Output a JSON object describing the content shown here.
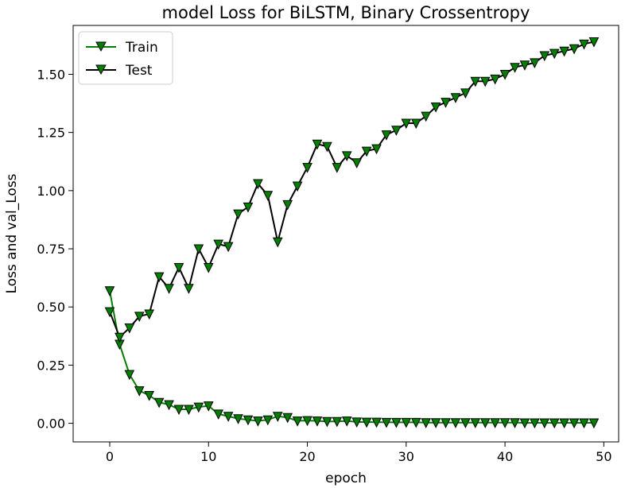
{
  "chart_data": {
    "type": "line",
    "title": "model Loss for BiLSTM, Binary Crossentropy",
    "xlabel": "epoch",
    "ylabel": "Loss and val_Loss",
    "xlim": [
      -3.7,
      51.5
    ],
    "ylim": [
      -0.08,
      1.71
    ],
    "xticks": [
      0,
      10,
      20,
      30,
      40,
      50
    ],
    "xtick_labels": [
      "0",
      "10",
      "20",
      "30",
      "40",
      "50"
    ],
    "yticks": [
      0.0,
      0.25,
      0.5,
      0.75,
      1.0,
      1.25,
      1.5
    ],
    "ytick_labels": [
      "0.00",
      "0.25",
      "0.50",
      "0.75",
      "1.00",
      "1.25",
      "1.50"
    ],
    "grid": false,
    "legend_position": "top-left",
    "series": [
      {
        "name": "Train",
        "color": "#007f00",
        "marker": "triangle-down",
        "x": [
          0,
          1,
          2,
          3,
          4,
          5,
          6,
          7,
          8,
          9,
          10,
          11,
          12,
          13,
          14,
          15,
          16,
          17,
          18,
          19,
          20,
          21,
          22,
          23,
          24,
          25,
          26,
          27,
          28,
          29,
          30,
          31,
          32,
          33,
          34,
          35,
          36,
          37,
          38,
          39,
          40,
          41,
          42,
          43,
          44,
          45,
          46,
          47,
          48,
          49
        ],
        "values": [
          0.57,
          0.34,
          0.21,
          0.14,
          0.12,
          0.09,
          0.08,
          0.06,
          0.06,
          0.07,
          0.075,
          0.04,
          0.03,
          0.02,
          0.015,
          0.01,
          0.015,
          0.03,
          0.025,
          0.01,
          0.012,
          0.01,
          0.008,
          0.008,
          0.01,
          0.006,
          0.005,
          0.005,
          0.004,
          0.004,
          0.004,
          0.004,
          0.003,
          0.003,
          0.003,
          0.003,
          0.003,
          0.003,
          0.003,
          0.003,
          0.003,
          0.003,
          0.002,
          0.002,
          0.002,
          0.002,
          0.002,
          0.002,
          0.002,
          0.002
        ]
      },
      {
        "name": "Test",
        "color": "#000000",
        "marker": "triangle-down",
        "x": [
          0,
          1,
          2,
          3,
          4,
          5,
          6,
          7,
          8,
          9,
          10,
          11,
          12,
          13,
          14,
          15,
          16,
          17,
          18,
          19,
          20,
          21,
          22,
          23,
          24,
          25,
          26,
          27,
          28,
          29,
          30,
          31,
          32,
          33,
          34,
          35,
          36,
          37,
          38,
          39,
          40,
          41,
          42,
          43,
          44,
          45,
          46,
          47,
          48,
          49
        ],
        "values": [
          0.48,
          0.37,
          0.41,
          0.46,
          0.47,
          0.63,
          0.58,
          0.67,
          0.58,
          0.75,
          0.67,
          0.77,
          0.76,
          0.9,
          0.93,
          1.03,
          0.98,
          0.78,
          0.94,
          1.02,
          1.1,
          1.2,
          1.19,
          1.1,
          1.15,
          1.12,
          1.17,
          1.18,
          1.24,
          1.26,
          1.29,
          1.29,
          1.32,
          1.36,
          1.38,
          1.4,
          1.42,
          1.47,
          1.47,
          1.48,
          1.5,
          1.53,
          1.54,
          1.55,
          1.58,
          1.59,
          1.6,
          1.61,
          1.63,
          1.64
        ]
      }
    ]
  }
}
